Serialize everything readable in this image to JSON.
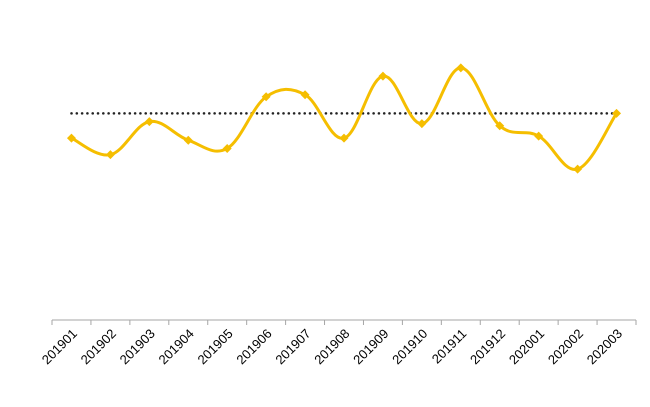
{
  "chart_data": {
    "type": "line",
    "title": "",
    "xlabel": "",
    "ylabel": "",
    "categories": [
      "201901",
      "201902",
      "201903",
      "201904",
      "201905",
      "201906",
      "201907",
      "201908",
      "201909",
      "201910",
      "201911",
      "201912",
      "202001",
      "202002",
      "202003"
    ],
    "series": [
      {
        "values": [
          0.88,
          0.8,
          0.96,
          0.87,
          0.83,
          1.08,
          1.09,
          0.88,
          1.18,
          0.95,
          1.22,
          0.94,
          0.89,
          0.73,
          1.0
        ],
        "color": "#F5BE00",
        "style": "solid-smooth",
        "marker": "diamond"
      },
      {
        "values": [
          1.0,
          1.0,
          1.0,
          1.0,
          1.0,
          1.0,
          1.0,
          1.0,
          1.0,
          1.0,
          1.0,
          1.0,
          1.0,
          1.0,
          1.0
        ],
        "color": "#222222",
        "style": "dotted"
      }
    ],
    "ylim": [
      0,
      1.5
    ],
    "y_axis_visible": false,
    "grid": false,
    "legend": "none"
  }
}
